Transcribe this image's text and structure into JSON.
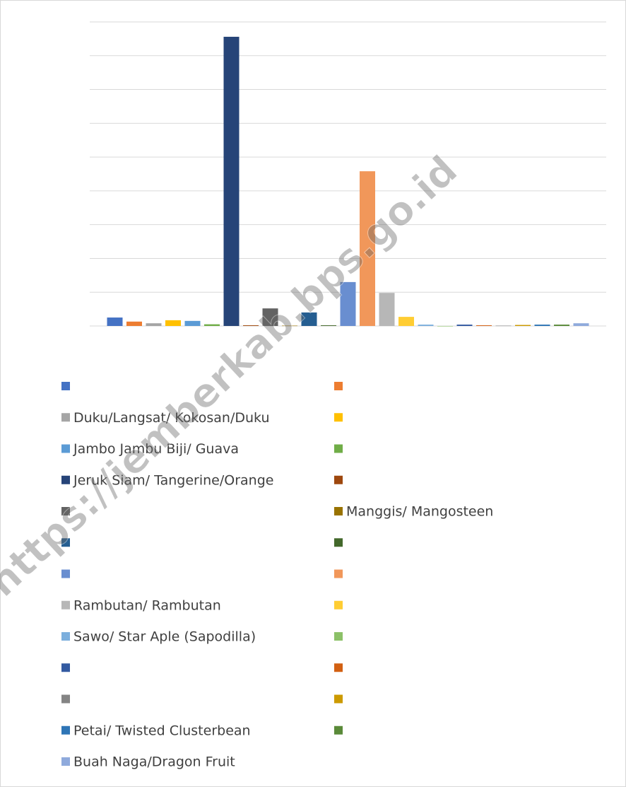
{
  "chart_data": {
    "type": "bar",
    "watermark": "https://jemberkab.bps.go.id",
    "categories": [
      null
    ],
    "ylim": [
      0,
      9
    ],
    "yticks": [
      0,
      1,
      2,
      3,
      4,
      5,
      6,
      7,
      8,
      9
    ],
    "grid": true,
    "tick_labels": false,
    "legend": "bottom",
    "series": [
      {
        "name": null,
        "color": "#4472c4",
        "values": [
          0.25
        ]
      },
      {
        "name": null,
        "color": "#ed7d31",
        "values": [
          0.13
        ]
      },
      {
        "name": "Duku/Langsat/ Kokosan/Duku",
        "color": "#a5a5a5",
        "values": [
          0.08
        ]
      },
      {
        "name": null,
        "color": "#ffc000",
        "values": [
          0.17
        ]
      },
      {
        "name": "Jambo Jambu Biji/ Guava",
        "color": "#5b9bd5",
        "values": [
          0.15
        ]
      },
      {
        "name": null,
        "color": "#70ad47",
        "values": [
          0.05
        ]
      },
      {
        "name": "Jeruk Siam/ Tangerine/Orange",
        "color": "#264478",
        "values": [
          8.56
        ]
      },
      {
        "name": null,
        "color": "#9e480e",
        "values": [
          0.02
        ]
      },
      {
        "name": null,
        "color": "#636363",
        "values": [
          0.52
        ]
      },
      {
        "name": "Manggis/ Mangosteen",
        "color": "#997300",
        "values": [
          0.01
        ]
      },
      {
        "name": null,
        "color": "#255e91",
        "values": [
          0.4
        ]
      },
      {
        "name": null,
        "color": "#43682b",
        "values": [
          0.02
        ]
      },
      {
        "name": null,
        "color": "#698ed0",
        "values": [
          1.3
        ]
      },
      {
        "name": null,
        "color": "#f1975a",
        "values": [
          4.58
        ]
      },
      {
        "name": "Rambutan/ Rambutan",
        "color": "#b7b7b7",
        "values": [
          0.98
        ]
      },
      {
        "name": null,
        "color": "#ffcd33",
        "values": [
          0.27
        ]
      },
      {
        "name": "Sawo/ Star Aple (Sapodilla)",
        "color": "#7cafdd",
        "values": [
          0.04
        ]
      },
      {
        "name": null,
        "color": "#8cc168",
        "values": [
          0
        ]
      },
      {
        "name": null,
        "color": "#335aa1",
        "values": [
          0.04
        ]
      },
      {
        "name": null,
        "color": "#d26012",
        "values": [
          0.02
        ]
      },
      {
        "name": null,
        "color": "#848484",
        "values": [
          0.01
        ]
      },
      {
        "name": null,
        "color": "#cc9a00",
        "values": [
          0.03
        ]
      },
      {
        "name": "Petai/ Twisted Clusterbean",
        "color": "#2e75b6",
        "values": [
          0.04
        ]
      },
      {
        "name": null,
        "color": "#5a8a39",
        "values": [
          0.04
        ]
      },
      {
        "name": "Buah Naga/Dragon Fruit",
        "color": "#8faadc",
        "values": [
          0.08
        ]
      }
    ]
  }
}
